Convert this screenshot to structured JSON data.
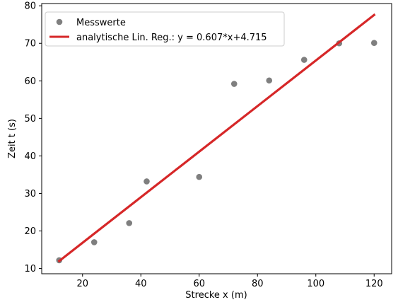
{
  "chart_data": {
    "type": "scatter",
    "title": "",
    "xlabel": "Strecke x (m)",
    "ylabel": "Zeit t (s)",
    "xlim": [
      6,
      126
    ],
    "ylim": [
      8.6,
      80.6
    ],
    "xticks": [
      20,
      40,
      60,
      80,
      100,
      120
    ],
    "yticks": [
      10,
      20,
      30,
      40,
      50,
      60,
      70,
      80
    ],
    "grid": false,
    "legend_position": "top-left",
    "series": [
      {
        "name": "Messwerte",
        "type": "scatter",
        "color": "#7f7f7f",
        "x": [
          12,
          24,
          36,
          42,
          60,
          72,
          84,
          96,
          108,
          120
        ],
        "y": [
          12.2,
          17.0,
          22.1,
          33.2,
          34.4,
          59.2,
          60.1,
          65.6,
          70.0,
          70.1
        ]
      },
      {
        "name": "analytische Lin. Reg.: y = 0.607*x+4.715",
        "type": "line",
        "color": "#d62728",
        "slope": 0.607,
        "intercept": 4.715,
        "x": [
          12,
          120
        ]
      }
    ]
  }
}
